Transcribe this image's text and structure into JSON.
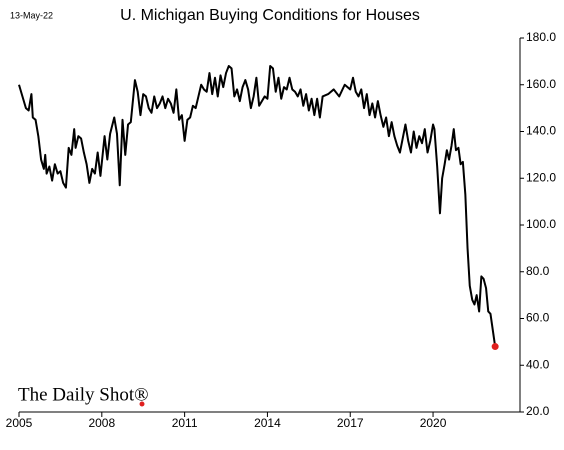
{
  "chart_data": {
    "type": "line",
    "title": "U. Michigan Buying Conditions for Houses",
    "date_label": "13-May-22",
    "source": "The Daily Shot®",
    "xlim": [
      2005,
      2023.15
    ],
    "xticks": [
      2005,
      2008,
      2011,
      2014,
      2017,
      2020
    ],
    "ylim": [
      20,
      180
    ],
    "yticks": [
      {
        "value": 20,
        "label": "20.0"
      },
      {
        "value": 40,
        "label": "40.0"
      },
      {
        "value": 60,
        "label": "60.0"
      },
      {
        "value": 80,
        "label": "80.0"
      },
      {
        "value": 100,
        "label": "100.0"
      },
      {
        "value": 120,
        "label": "120.0"
      },
      {
        "value": 140,
        "label": "140.0"
      },
      {
        "value": 160,
        "label": "160.0"
      },
      {
        "value": 180,
        "label": "180.0"
      }
    ],
    "end_marker_color": "#e0201f",
    "series": [
      {
        "color": "#000000",
        "x": [
          2005.0,
          2005.1,
          2005.25,
          2005.35,
          2005.45,
          2005.5,
          2005.6,
          2005.7,
          2005.8,
          2005.9,
          2005.95,
          2006.0,
          2006.1,
          2006.2,
          2006.3,
          2006.4,
          2006.5,
          2006.6,
          2006.7,
          2006.8,
          2006.9,
          2007.0,
          2007.05,
          2007.15,
          2007.25,
          2007.35,
          2007.45,
          2007.55,
          2007.65,
          2007.75,
          2007.85,
          2007.95,
          2008.1,
          2008.2,
          2008.3,
          2008.45,
          2008.55,
          2008.65,
          2008.75,
          2008.85,
          2008.95,
          2009.05,
          2009.2,
          2009.3,
          2009.4,
          2009.5,
          2009.6,
          2009.7,
          2009.8,
          2009.9,
          2010.0,
          2010.1,
          2010.2,
          2010.3,
          2010.4,
          2010.5,
          2010.6,
          2010.7,
          2010.8,
          2010.9,
          2011.0,
          2011.1,
          2011.2,
          2011.3,
          2011.4,
          2011.5,
          2011.6,
          2011.7,
          2011.8,
          2011.9,
          2012.0,
          2012.1,
          2012.2,
          2012.3,
          2012.4,
          2012.5,
          2012.6,
          2012.7,
          2012.8,
          2012.9,
          2013.0,
          2013.1,
          2013.2,
          2013.3,
          2013.4,
          2013.5,
          2013.6,
          2013.7,
          2013.8,
          2013.9,
          2014.0,
          2014.1,
          2014.2,
          2014.3,
          2014.4,
          2014.5,
          2014.6,
          2014.7,
          2014.8,
          2014.9,
          2015.0,
          2015.1,
          2015.2,
          2015.3,
          2015.4,
          2015.5,
          2015.6,
          2015.7,
          2015.8,
          2015.9,
          2016.0,
          2016.2,
          2016.4,
          2016.6,
          2016.8,
          2017.0,
          2017.1,
          2017.2,
          2017.3,
          2017.4,
          2017.5,
          2017.6,
          2017.7,
          2017.8,
          2017.9,
          2018.0,
          2018.1,
          2018.2,
          2018.3,
          2018.4,
          2018.5,
          2018.6,
          2018.7,
          2018.8,
          2018.9,
          2019.0,
          2019.1,
          2019.2,
          2019.3,
          2019.4,
          2019.5,
          2019.6,
          2019.7,
          2019.8,
          2019.9,
          2020.0,
          2020.05,
          2020.15,
          2020.25,
          2020.33,
          2020.42,
          2020.5,
          2020.58,
          2020.67,
          2020.75,
          2020.83,
          2020.92,
          2021.0,
          2021.08,
          2021.17,
          2021.25,
          2021.33,
          2021.42,
          2021.5,
          2021.58,
          2021.67,
          2021.75,
          2021.83,
          2021.92,
          2022.0,
          2022.08,
          2022.25
        ],
        "values": [
          160,
          156,
          150,
          149,
          156,
          146,
          145,
          138,
          128,
          124,
          130,
          122,
          125,
          119,
          126,
          122,
          123,
          118,
          116,
          133,
          130,
          141,
          133,
          138,
          137,
          131,
          126,
          118,
          124,
          122,
          131,
          121,
          138,
          128,
          139,
          146,
          139,
          117,
          145,
          130,
          143,
          144,
          162,
          157,
          147,
          156,
          155,
          150,
          148,
          155,
          150,
          152,
          155,
          150,
          154,
          152,
          148,
          158,
          145,
          147,
          136,
          145,
          146,
          151,
          150,
          155,
          160,
          158,
          157,
          165,
          156,
          163,
          155,
          164,
          159,
          165,
          168,
          167,
          155,
          158,
          153,
          159,
          162,
          158,
          150,
          155,
          163,
          151,
          153,
          155,
          154,
          168,
          167,
          157,
          163,
          154,
          159,
          158,
          163,
          158,
          157,
          155,
          158,
          151,
          156,
          149,
          154,
          147,
          154,
          146,
          155,
          156,
          158,
          155,
          160,
          158,
          163,
          157,
          155,
          158,
          150,
          156,
          147,
          152,
          146,
          153,
          147,
          142,
          146,
          138,
          144,
          138,
          134,
          131,
          137,
          143,
          136,
          131,
          140,
          133,
          138,
          135,
          141,
          131,
          136,
          143,
          141,
          125,
          105,
          120,
          126,
          132,
          128,
          134,
          141,
          132,
          133,
          126,
          127,
          113,
          90,
          74,
          68,
          66,
          70,
          63,
          78,
          77,
          73,
          63,
          62,
          48
        ]
      }
    ]
  }
}
